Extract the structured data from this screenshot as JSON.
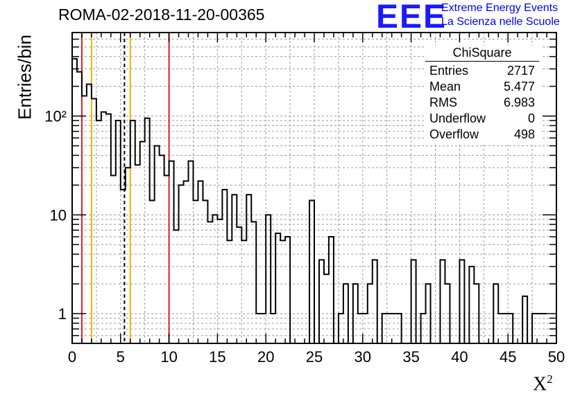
{
  "title": "ROMA-02-2018-11-20-00365",
  "logo": {
    "mark": "EEE",
    "line1": "Extreme Energy Events",
    "line2": "La Scienza nelle Scuole"
  },
  "stats": {
    "title": "ChiSquare",
    "rows": [
      {
        "label": "Entries",
        "value": "2717"
      },
      {
        "label": "Mean",
        "value": "5.477"
      },
      {
        "label": "RMS",
        "value": "6.983"
      },
      {
        "label": "Underflow",
        "value": "0"
      },
      {
        "label": "Overflow",
        "value": "498"
      }
    ]
  },
  "chart_data": {
    "type": "histogram",
    "title": "ROMA-02-2018-11-20-00365",
    "xlabel": "X²",
    "ylabel": "Entries/bin",
    "xlim": [
      0,
      50
    ],
    "ylim": [
      0.5,
      700
    ],
    "yscale": "log",
    "grid": true,
    "bin_width": 0.5,
    "x_ticks": [
      0,
      5,
      10,
      15,
      20,
      25,
      30,
      35,
      40,
      45,
      50
    ],
    "y_ticks": [
      {
        "value": 1,
        "label": "1"
      },
      {
        "value": 10,
        "label": "10"
      },
      {
        "value": 100,
        "label": "10²"
      }
    ],
    "values": [
      380,
      280,
      160,
      210,
      150,
      90,
      110,
      105,
      25,
      90,
      18,
      30,
      90,
      32,
      55,
      95,
      14,
      50,
      40,
      25,
      35,
      7,
      20,
      22,
      35,
      14,
      22,
      14,
      8.5,
      10,
      9,
      18,
      5.5,
      16,
      7.5,
      5.5,
      16,
      8.5,
      1,
      1,
      10,
      1,
      6.5,
      5.5,
      6,
      0,
      0,
      0,
      0,
      14,
      0,
      3.5,
      2.5,
      6,
      0,
      1,
      2,
      0,
      2,
      1,
      1,
      2,
      3.5,
      0,
      1,
      1,
      1,
      1,
      0,
      0,
      3.5,
      0,
      1,
      2,
      0,
      0,
      3.5,
      2,
      0,
      0,
      3.5,
      0,
      3,
      2,
      0,
      0,
      0,
      2,
      1,
      1,
      1,
      0,
      0,
      1.5,
      0,
      1,
      1,
      1
    ],
    "vertical_lines": [
      {
        "x": 1,
        "color": "#e8191c",
        "style": "solid"
      },
      {
        "x": 2,
        "color": "#f0b400",
        "style": "solid"
      },
      {
        "x": 5.4,
        "color": "#000000",
        "style": "dashed"
      },
      {
        "x": 6,
        "color": "#f0b400",
        "style": "solid"
      },
      {
        "x": 10,
        "color": "#e8191c",
        "style": "solid"
      }
    ]
  }
}
